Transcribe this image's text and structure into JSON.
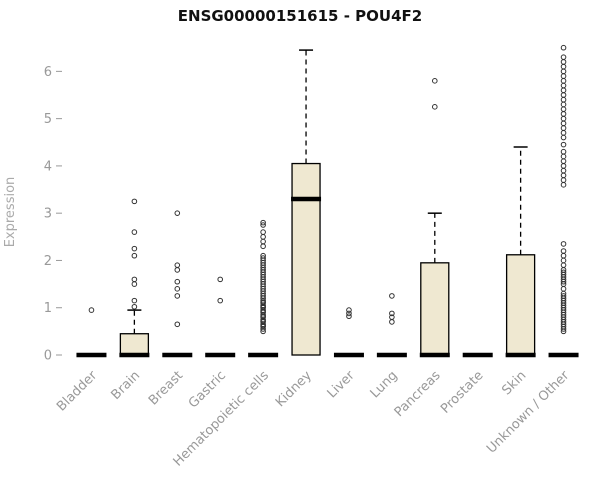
{
  "chart_data": {
    "type": "boxplot",
    "title": "ENSG00000151615 - POU4F2",
    "ylabel": "Expression",
    "ylim": [
      0,
      6.6
    ],
    "yticks": [
      0,
      1,
      2,
      3,
      4,
      5,
      6
    ],
    "box_fill": "#EFE8D1",
    "box_stroke": "#000000",
    "outlier_stroke": "#333333",
    "axis_text_color": "#999999",
    "categories": [
      "Bladder",
      "Brain",
      "Breast",
      "Gastric",
      "Hematopoietic cells",
      "Kidney",
      "Liver",
      "Lung",
      "Pancreas",
      "Prostate",
      "Skin",
      "Unknown / Other"
    ],
    "boxes": [
      {
        "label": "Bladder",
        "q1": 0,
        "median": 0,
        "q3": 0,
        "whisker_low": 0,
        "whisker_high": 0,
        "outliers": [
          0.95
        ]
      },
      {
        "label": "Brain",
        "q1": 0,
        "median": 0,
        "q3": 0.45,
        "whisker_low": 0,
        "whisker_high": 0.95,
        "outliers": [
          1.02,
          1.15,
          1.5,
          1.6,
          2.1,
          2.25,
          2.6,
          3.25
        ]
      },
      {
        "label": "Breast",
        "q1": 0,
        "median": 0,
        "q3": 0,
        "whisker_low": 0,
        "whisker_high": 0,
        "outliers": [
          0.65,
          1.25,
          1.4,
          1.55,
          1.8,
          1.9,
          3.0
        ]
      },
      {
        "label": "Gastric",
        "q1": 0,
        "median": 0,
        "q3": 0,
        "whisker_low": 0,
        "whisker_high": 0,
        "outliers": [
          1.15,
          1.6
        ]
      },
      {
        "label": "Hematopoietic cells",
        "q1": 0,
        "median": 0,
        "q3": 0,
        "whisker_low": 0,
        "whisker_high": 0,
        "outliers": [
          0.5,
          0.55,
          0.6,
          0.62,
          0.65,
          0.7,
          0.72,
          0.75,
          0.8,
          0.82,
          0.85,
          0.9,
          0.92,
          0.95,
          1.0,
          1.02,
          1.05,
          1.1,
          1.12,
          1.15,
          1.2,
          1.25,
          1.3,
          1.35,
          1.4,
          1.45,
          1.5,
          1.55,
          1.6,
          1.65,
          1.7,
          1.75,
          1.8,
          1.85,
          1.9,
          1.95,
          2.0,
          2.05,
          2.1,
          2.3,
          2.4,
          2.5,
          2.6,
          2.75,
          2.8
        ]
      },
      {
        "label": "Kidney",
        "q1": 0,
        "median": 3.3,
        "q3": 4.05,
        "whisker_low": 0,
        "whisker_high": 6.45,
        "outliers": []
      },
      {
        "label": "Liver",
        "q1": 0,
        "median": 0,
        "q3": 0,
        "whisker_low": 0,
        "whisker_high": 0,
        "outliers": [
          0.82,
          0.88,
          0.95
        ]
      },
      {
        "label": "Lung",
        "q1": 0,
        "median": 0,
        "q3": 0,
        "whisker_low": 0,
        "whisker_high": 0,
        "outliers": [
          0.7,
          0.8,
          0.88,
          1.25
        ]
      },
      {
        "label": "Pancreas",
        "q1": 0,
        "median": 0,
        "q3": 1.95,
        "whisker_low": 0,
        "whisker_high": 3.0,
        "outliers": [
          5.25,
          5.8
        ]
      },
      {
        "label": "Prostate",
        "q1": 0,
        "median": 0,
        "q3": 0,
        "whisker_low": 0,
        "whisker_high": 0,
        "outliers": []
      },
      {
        "label": "Skin",
        "q1": 0,
        "median": 0,
        "q3": 2.12,
        "whisker_low": 0,
        "whisker_high": 4.4,
        "outliers": []
      },
      {
        "label": "Unknown / Other",
        "q1": 0,
        "median": 0,
        "q3": 0,
        "whisker_low": 0,
        "whisker_high": 0,
        "outliers": [
          0.5,
          0.55,
          0.6,
          0.65,
          0.7,
          0.75,
          0.8,
          0.85,
          0.9,
          0.95,
          1.0,
          1.05,
          1.1,
          1.15,
          1.2,
          1.25,
          1.3,
          1.4,
          1.5,
          1.55,
          1.6,
          1.65,
          1.7,
          1.75,
          1.8,
          1.9,
          2.0,
          2.1,
          2.2,
          2.35,
          3.6,
          3.7,
          3.8,
          3.9,
          4.0,
          4.1,
          4.2,
          4.3,
          4.45,
          4.6,
          4.7,
          4.8,
          4.9,
          5.0,
          5.1,
          5.2,
          5.3,
          5.4,
          5.5,
          5.6,
          5.7,
          5.8,
          5.9,
          6.0,
          6.1,
          6.2,
          6.3,
          6.5
        ]
      }
    ]
  }
}
